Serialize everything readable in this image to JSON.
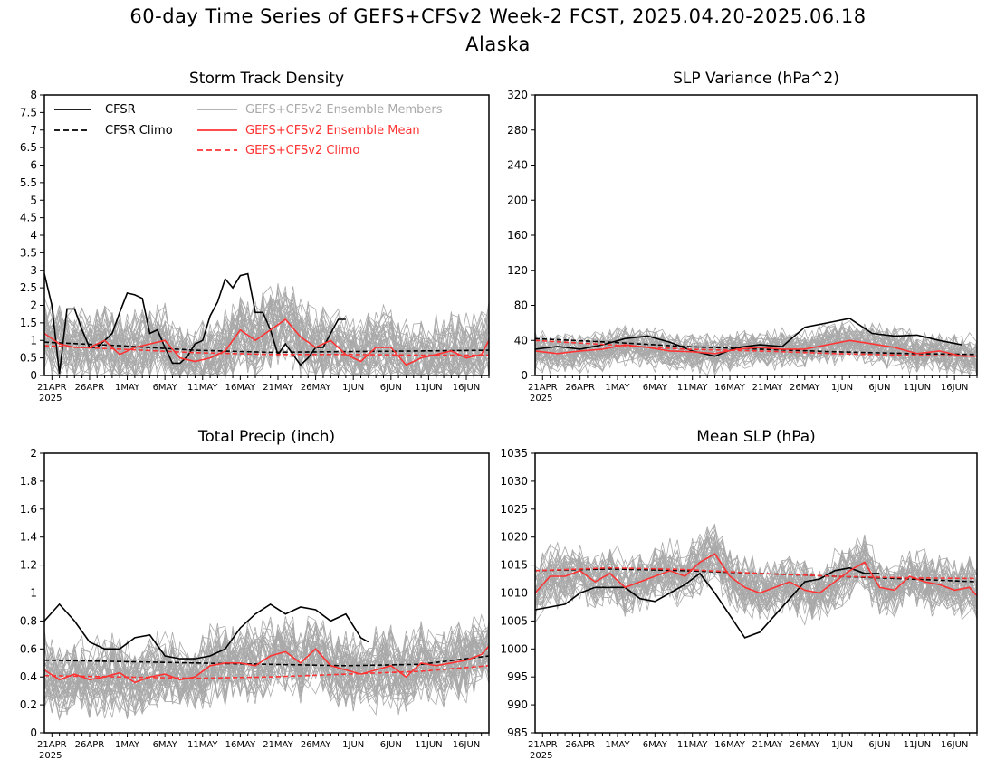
{
  "figure": {
    "title": "60-day Time Series of GEFS+CFSv2 Week-2 FCST, 2025.04.20-2025.06.18",
    "subtitle": "Alaska",
    "x_ticks": [
      "21APR",
      "26APR",
      "1MAY",
      "6MAY",
      "11MAY",
      "16MAY",
      "21MAY",
      "26MAY",
      "1JUN",
      "6JUN",
      "11JUN",
      "16JUN"
    ],
    "x_year": "2025",
    "legend": {
      "cfsr": "CFSR",
      "cfsr_climo": "CFSR Climo",
      "members": "GEFS+CFSv2 Ensemble Members",
      "mean": "GEFS+CFSv2 Ensemble Mean",
      "gefs_climo": "GEFS+CFSv2 Climo"
    },
    "colors": {
      "cfsr": "#000000",
      "members": "#a9a9a9",
      "mean": "#ff3333"
    }
  },
  "chart_data": [
    {
      "type": "line",
      "title": "Storm Track Density",
      "ylim": [
        0,
        8
      ],
      "yticks": [
        "0",
        "0.5",
        "1",
        "1.5",
        "2",
        "2.5",
        "3",
        "3.5",
        "4",
        "4.5",
        "5",
        "5.5",
        "6",
        "6.5",
        "7",
        "7.5",
        "8"
      ],
      "x_range_days": [
        0,
        59
      ],
      "legend_position": "top",
      "series": [
        {
          "name": "CFSR",
          "x": [
            0,
            1,
            2,
            3,
            4,
            5,
            6,
            7,
            8,
            9,
            10,
            11,
            12,
            13,
            14,
            15,
            16,
            17,
            18,
            19,
            20,
            21,
            22,
            23,
            24,
            25,
            26,
            27,
            28,
            29,
            30,
            31,
            32,
            33,
            34,
            35,
            36,
            37,
            38,
            39,
            40,
            41,
            42,
            43
          ],
          "values": [
            2.9,
            2.0,
            0.05,
            1.9,
            1.9,
            1.3,
            0.8,
            0.8,
            1.0,
            1.2,
            1.8,
            2.35,
            2.3,
            2.2,
            1.2,
            1.3,
            0.8,
            0.35,
            0.35,
            0.55,
            0.9,
            1.0,
            1.7,
            2.1,
            2.75,
            2.5,
            2.85,
            2.9,
            1.8,
            1.8,
            1.3,
            0.6,
            0.9,
            0.6,
            0.3,
            0.5,
            0.8,
            0.8,
            1.2,
            1.6,
            1.6,
            null,
            null,
            null
          ]
        },
        {
          "name": "CFSR Climo",
          "x": [
            0,
            10,
            20,
            30,
            40,
            50,
            59
          ],
          "values": [
            0.95,
            0.85,
            0.72,
            0.66,
            0.68,
            0.7,
            0.72
          ]
        },
        {
          "name": "GEFS+CFSv2 Ensemble Mean",
          "x": [
            0,
            2,
            4,
            6,
            8,
            10,
            12,
            14,
            16,
            18,
            20,
            22,
            24,
            26,
            28,
            30,
            32,
            34,
            36,
            38,
            40,
            42,
            44,
            46,
            48,
            50,
            52,
            54,
            56,
            58,
            59
          ],
          "values": [
            1.2,
            0.9,
            0.8,
            0.8,
            1.0,
            0.6,
            0.8,
            0.9,
            1.0,
            0.5,
            0.4,
            0.5,
            0.7,
            1.3,
            1.0,
            1.3,
            1.6,
            1.1,
            0.8,
            1.0,
            0.6,
            0.4,
            0.8,
            0.8,
            0.3,
            0.5,
            0.6,
            0.7,
            0.5,
            0.6,
            1.0
          ]
        },
        {
          "name": "GEFS+CFSv2 Climo",
          "x": [
            0,
            10,
            20,
            30,
            40,
            50,
            59
          ],
          "values": [
            0.85,
            0.75,
            0.65,
            0.6,
            0.6,
            0.58,
            0.58
          ]
        }
      ]
    },
    {
      "type": "line",
      "title": "SLP Variance (hPa^2)",
      "ylim": [
        0,
        320
      ],
      "yticks": [
        "0",
        "40",
        "80",
        "120",
        "160",
        "200",
        "240",
        "280",
        "320"
      ],
      "x_range_days": [
        0,
        59
      ],
      "series": [
        {
          "name": "CFSR",
          "x": [
            0,
            3,
            6,
            9,
            12,
            15,
            18,
            21,
            24,
            27,
            30,
            33,
            36,
            39,
            42,
            45,
            48,
            51,
            54,
            57,
            60,
            63
          ],
          "values": [
            30,
            33,
            30,
            35,
            42,
            45,
            38,
            28,
            22,
            32,
            35,
            33,
            55,
            60,
            65,
            48,
            45,
            46,
            40,
            35,
            22,
            null
          ]
        },
        {
          "name": "CFSR Climo",
          "x": [
            0,
            10,
            20,
            30,
            40,
            50,
            59
          ],
          "values": [
            42,
            38,
            33,
            30,
            27,
            25,
            24
          ]
        },
        {
          "name": "GEFS+CFSv2 Ensemble Mean",
          "x": [
            0,
            3,
            6,
            9,
            12,
            15,
            18,
            21,
            24,
            27,
            30,
            33,
            36,
            39,
            42,
            45,
            48,
            51,
            54,
            57,
            59
          ],
          "values": [
            28,
            25,
            28,
            30,
            35,
            32,
            28,
            27,
            25,
            30,
            32,
            30,
            30,
            35,
            40,
            36,
            32,
            25,
            28,
            22,
            22
          ]
        },
        {
          "name": "GEFS+CFSv2 Climo",
          "x": [
            0,
            10,
            20,
            30,
            40,
            50,
            59
          ],
          "values": [
            40,
            35,
            30,
            28,
            25,
            23,
            22
          ]
        }
      ]
    },
    {
      "type": "line",
      "title": "Total Precip (inch)",
      "ylim": [
        0,
        2
      ],
      "yticks": [
        "0",
        "0.2",
        "0.4",
        "0.6",
        "0.8",
        "1",
        "1.2",
        "1.4",
        "1.6",
        "1.8",
        "2"
      ],
      "x_range_days": [
        0,
        59
      ],
      "series": [
        {
          "name": "CFSR",
          "x": [
            0,
            2,
            4,
            6,
            8,
            10,
            12,
            14,
            16,
            18,
            20,
            22,
            24,
            26,
            28,
            30,
            32,
            34,
            36,
            38,
            40,
            42,
            43
          ],
          "values": [
            0.8,
            0.92,
            0.8,
            0.65,
            0.6,
            0.6,
            0.68,
            0.7,
            0.55,
            0.53,
            0.53,
            0.55,
            0.6,
            0.75,
            0.85,
            0.92,
            0.85,
            0.9,
            0.88,
            0.8,
            0.85,
            0.68,
            0.65
          ]
        },
        {
          "name": "CFSR Climo",
          "x": [
            0,
            10,
            20,
            30,
            40,
            50,
            59
          ],
          "values": [
            0.52,
            0.51,
            0.5,
            0.49,
            0.48,
            0.49,
            0.55
          ]
        },
        {
          "name": "GEFS+CFSv2 Ensemble Mean",
          "x": [
            0,
            2,
            4,
            6,
            8,
            10,
            12,
            14,
            16,
            18,
            20,
            22,
            24,
            26,
            28,
            30,
            32,
            34,
            36,
            38,
            40,
            42,
            44,
            46,
            48,
            50,
            52,
            54,
            56,
            58,
            59
          ],
          "values": [
            0.45,
            0.38,
            0.42,
            0.38,
            0.4,
            0.43,
            0.36,
            0.4,
            0.42,
            0.38,
            0.4,
            0.48,
            0.5,
            0.5,
            0.48,
            0.55,
            0.58,
            0.5,
            0.6,
            0.48,
            0.45,
            0.42,
            0.45,
            0.48,
            0.4,
            0.5,
            0.48,
            0.5,
            0.52,
            0.56,
            0.62
          ]
        },
        {
          "name": "GEFS+CFSv2 Climo",
          "x": [
            0,
            10,
            20,
            30,
            40,
            50,
            59
          ],
          "values": [
            0.41,
            0.4,
            0.39,
            0.4,
            0.42,
            0.44,
            0.48
          ]
        }
      ]
    },
    {
      "type": "line",
      "title": "Mean SLP (hPa)",
      "ylim": [
        985,
        1035
      ],
      "yticks": [
        "985",
        "990",
        "995",
        "1000",
        "1005",
        "1010",
        "1015",
        "1020",
        "1025",
        "1030",
        "1035"
      ],
      "x_range_days": [
        0,
        59
      ],
      "series": [
        {
          "name": "CFSR",
          "x": [
            0,
            2,
            4,
            6,
            8,
            10,
            12,
            14,
            16,
            18,
            20,
            22,
            24,
            26,
            28,
            30,
            32,
            34,
            36,
            38,
            40,
            42,
            44,
            46
          ],
          "values": [
            1007,
            1007.5,
            1008,
            1010,
            1011,
            1011,
            1011,
            1009,
            1008.5,
            1010,
            1011.5,
            1013.5,
            1010,
            1006,
            1002,
            1003,
            1006,
            1009,
            1012,
            1012.5,
            1014,
            1014.5,
            1013.5,
            1013.5
          ]
        },
        {
          "name": "CFSR Climo",
          "x": [
            0,
            10,
            20,
            30,
            40,
            50,
            59
          ],
          "values": [
            1014,
            1014.3,
            1014,
            1013.5,
            1013,
            1012.5,
            1012
          ]
        },
        {
          "name": "GEFS+CFSv2 Ensemble Mean",
          "x": [
            0,
            2,
            4,
            6,
            8,
            10,
            12,
            14,
            16,
            18,
            20,
            22,
            24,
            26,
            28,
            30,
            32,
            34,
            36,
            38,
            40,
            42,
            44,
            46,
            48,
            50,
            52,
            54,
            56,
            58,
            59
          ],
          "values": [
            1010,
            1013,
            1013,
            1014,
            1012,
            1013.5,
            1011,
            1012,
            1013,
            1014,
            1013,
            1015.5,
            1017,
            1013,
            1011,
            1010,
            1011,
            1012,
            1010.5,
            1010,
            1012,
            1014,
            1015.5,
            1011,
            1010.5,
            1013,
            1012,
            1011.5,
            1010.5,
            1011,
            1009.5
          ]
        },
        {
          "name": "GEFS+CFSv2 Climo",
          "x": [
            0,
            10,
            20,
            30,
            40,
            50,
            59
          ],
          "values": [
            1014,
            1014.5,
            1014.2,
            1013.5,
            1013,
            1012.7,
            1012.6
          ]
        }
      ]
    }
  ]
}
